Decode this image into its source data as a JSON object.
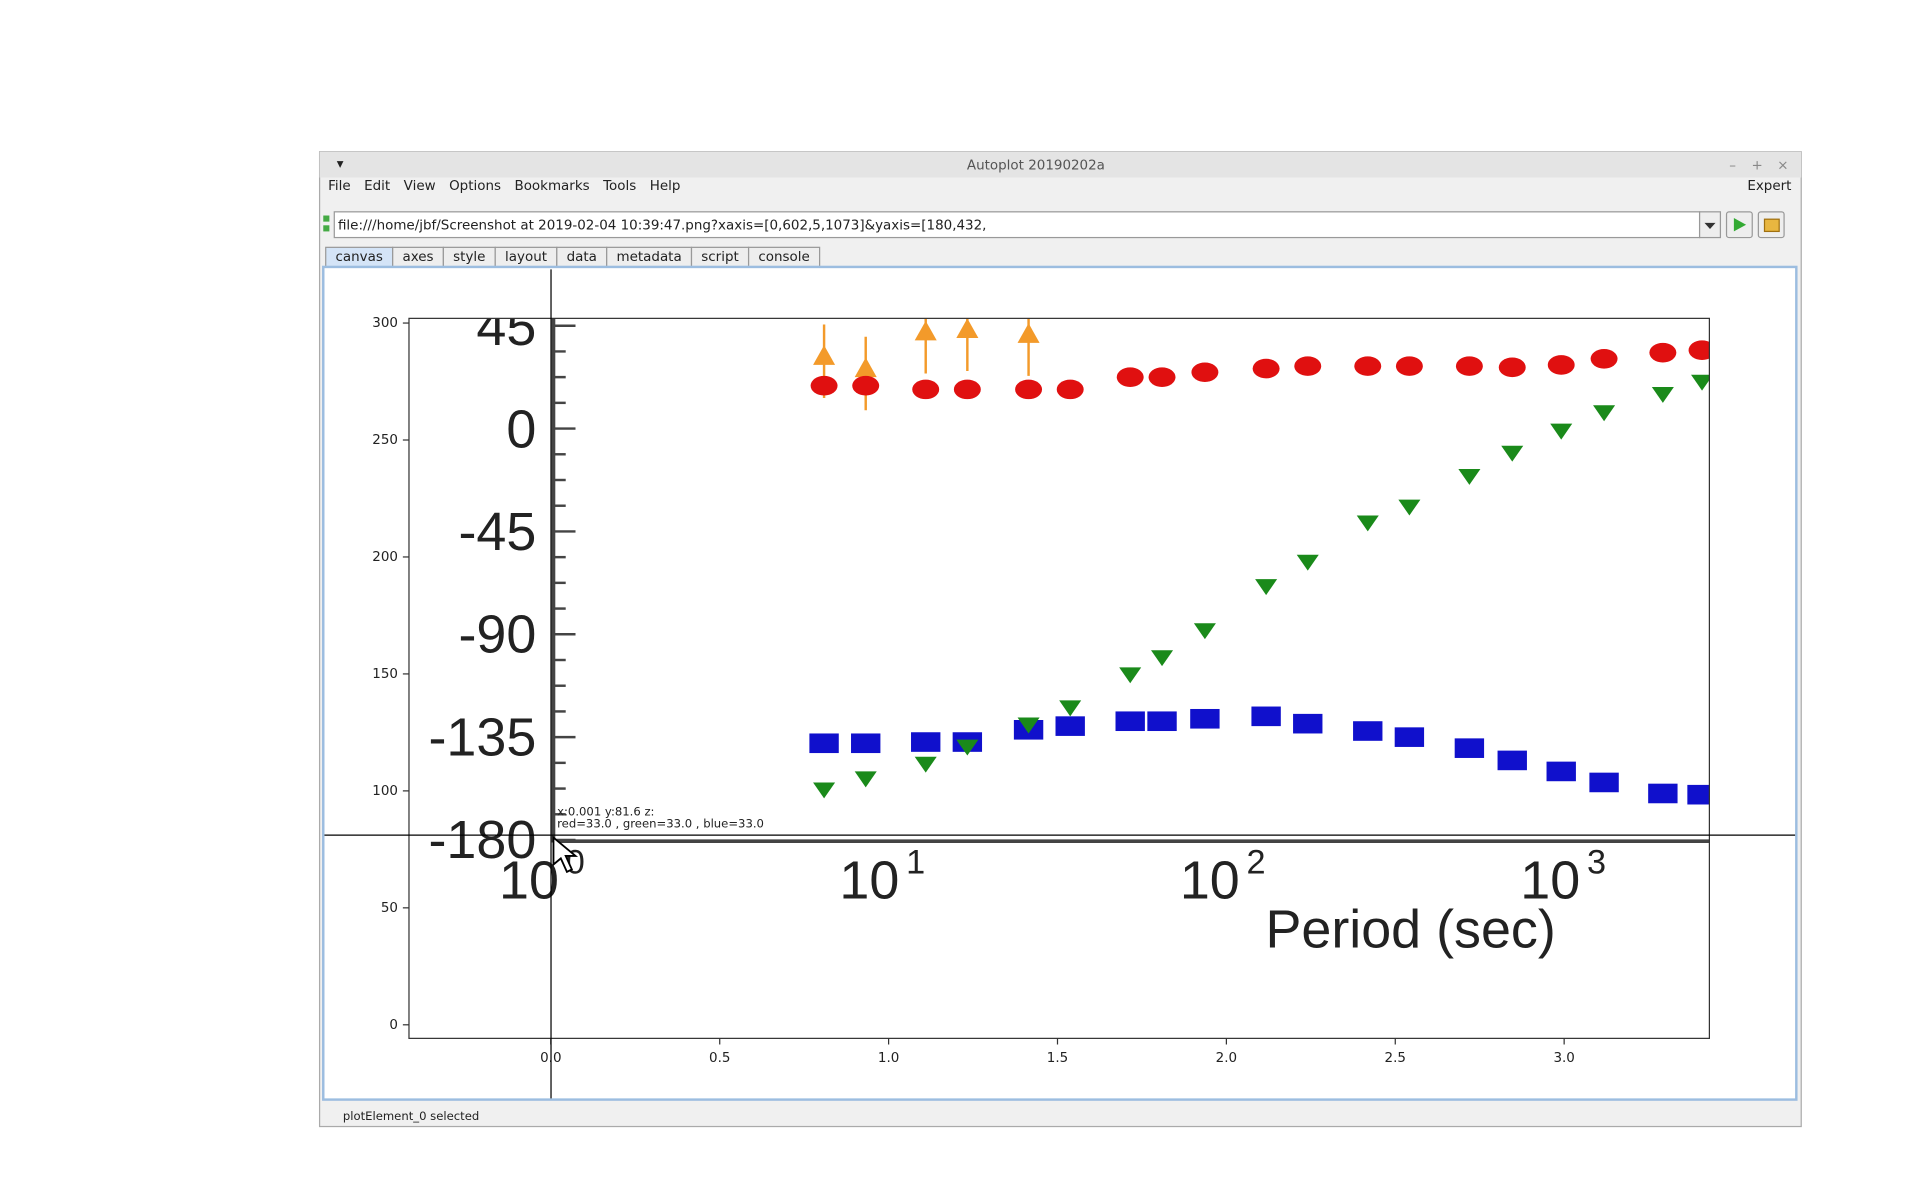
{
  "window": {
    "title": "Autoplot 20190202a",
    "menu": [
      "File",
      "Edit",
      "View",
      "Options",
      "Bookmarks",
      "Tools",
      "Help"
    ],
    "mode": "Expert"
  },
  "address": {
    "url": "file:///home/jbf/Screenshot at 2019-02-04 10:39:47.png?xaxis=[0,602,5,1073]&yaxis=[180,432,"
  },
  "tabs": [
    "canvas",
    "axes",
    "style",
    "layout",
    "data",
    "metadata",
    "script",
    "console"
  ],
  "chart_data": {
    "type": "image",
    "xlim": [
      -0.42,
      3.43
    ],
    "ylim": [
      -5.8,
      302
    ],
    "xticks": [
      {
        "value": 0,
        "label": "0.0"
      },
      0.5,
      {
        "value": 1,
        "label": "1.0"
      },
      1.5,
      {
        "value": 2,
        "label": "2.0"
      },
      2.5,
      {
        "value": 3,
        "label": "3.0"
      }
    ],
    "yticks": [
      0,
      50,
      100,
      150,
      200,
      250,
      300
    ],
    "image": {
      "y_labels": [
        "45",
        "0",
        "-45",
        "-90",
        "-135",
        "-180"
      ],
      "x_labels": [
        {
          "base": "10",
          "exp": "0"
        },
        {
          "base": "10",
          "exp": "1"
        },
        {
          "base": "10",
          "exp": "2"
        },
        {
          "base": "10",
          "exp": "3"
        }
      ],
      "x_title": "Period (sec)"
    }
  },
  "crosshair": {
    "readout": "x:0.001  y:81.6  z:",
    "rgb": "red=33.0 , green=33.0 , blue=33.0"
  },
  "status": "plotElement_0 selected"
}
